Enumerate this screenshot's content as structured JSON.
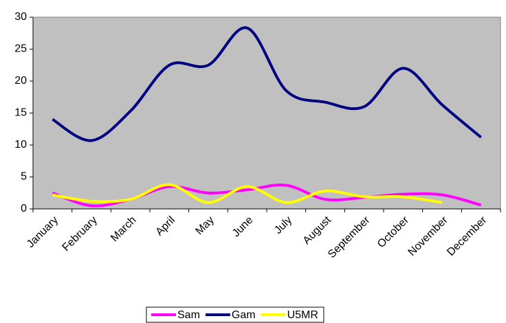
{
  "chart_data": {
    "type": "line",
    "categories": [
      "January",
      "February",
      "March",
      "April",
      "May",
      "June",
      "July",
      "August",
      "September",
      "October",
      "November",
      "December"
    ],
    "series": [
      {
        "name": "Sam",
        "color": "#ff00ff",
        "values": [
          2.5,
          0.5,
          1.5,
          3.5,
          2.5,
          3,
          3.7,
          1.5,
          1.8,
          2.3,
          2.2,
          0.6
        ]
      },
      {
        "name": "Gam",
        "color": "#000080",
        "values": [
          14,
          10.7,
          15.3,
          22.5,
          22.5,
          28.3,
          18.5,
          16.7,
          16,
          22,
          16.3,
          11.2
        ]
      },
      {
        "name": "U5MR",
        "color": "#ffff00",
        "values": [
          2.2,
          1.2,
          1.5,
          3.8,
          1.0,
          3.5,
          1.0,
          2.8,
          1.9,
          1.9,
          1.0,
          null
        ]
      }
    ],
    "ylim": [
      0,
      30
    ],
    "yticks": [
      0,
      5,
      10,
      15,
      20,
      25,
      30
    ],
    "smooth": true,
    "legend": "bottom",
    "plot_background": "#c0c0c0"
  }
}
